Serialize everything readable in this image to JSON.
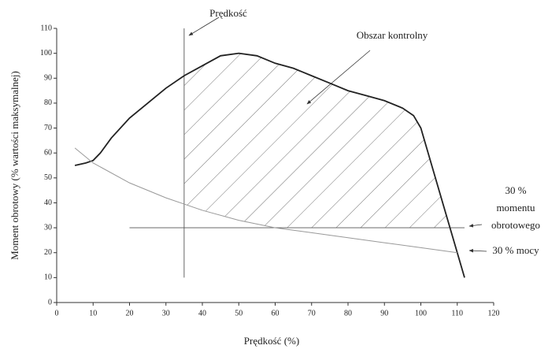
{
  "chart_data": {
    "type": "line",
    "xlabel": "Prędkość (%)",
    "ylabel": "Moment obrotowy (% wartości maksymalnej)",
    "xlim": [
      0,
      120
    ],
    "xticks": [
      0,
      10,
      20,
      30,
      40,
      50,
      60,
      70,
      80,
      90,
      100,
      110,
      120
    ],
    "ylim": [
      0,
      110
    ],
    "yticks": [
      0,
      10,
      20,
      30,
      40,
      50,
      60,
      70,
      80,
      90,
      100,
      110
    ],
    "series": [
      {
        "color": "#222222",
        "x": [
          5,
          8,
          10,
          12,
          15,
          20,
          25,
          30,
          35,
          40,
          45,
          50,
          55,
          60,
          65,
          70,
          75,
          80,
          85,
          90,
          95,
          98,
          100,
          103,
          106,
          109,
          112
        ],
        "values": [
          55,
          56,
          57,
          60,
          66,
          74,
          80,
          86,
          91,
          95,
          99,
          100,
          99,
          96,
          94,
          91,
          88,
          85,
          83,
          81,
          78,
          75,
          70,
          55,
          40,
          25,
          10
        ]
      },
      {
        "color": "#999999",
        "x": [
          5,
          10,
          20,
          30,
          40,
          50,
          60,
          70,
          80,
          90,
          100,
          110
        ],
        "values": [
          62,
          56,
          48,
          42,
          37,
          33,
          30,
          28,
          26,
          24,
          22,
          20
        ]
      }
    ],
    "vlines": [
      {
        "x": 35,
        "y": [
          10,
          110
        ],
        "label": "Prędkość"
      }
    ],
    "hlines": [
      {
        "y": 30,
        "x": [
          20,
          112
        ],
        "label": [
          "30 %",
          "momentu",
          "obrotowego"
        ]
      }
    ],
    "region_label": "Obszar kontrolny",
    "power_label": "30 % mocy"
  }
}
